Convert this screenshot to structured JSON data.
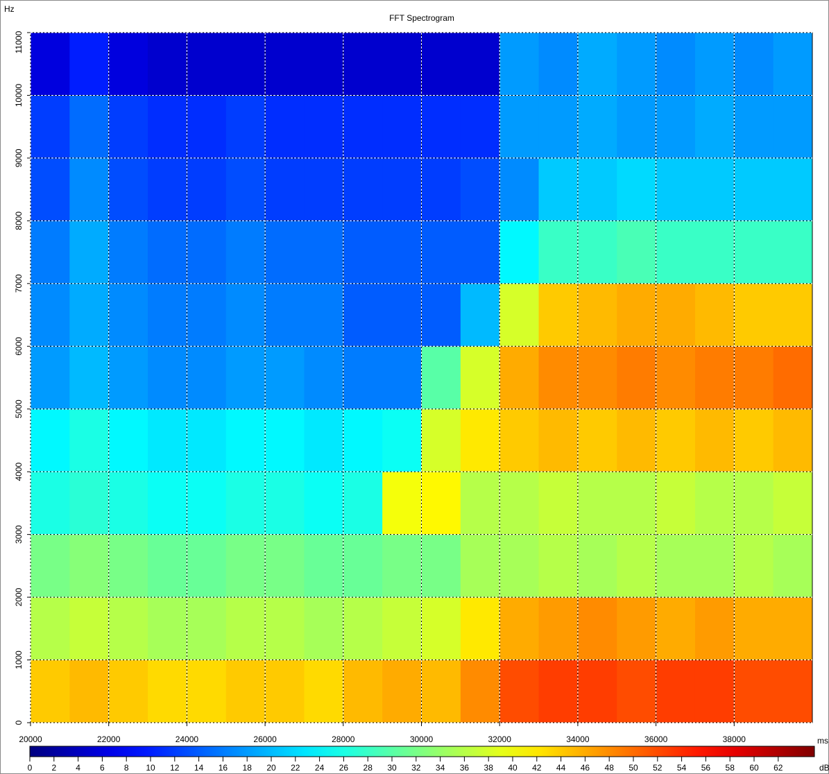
{
  "chart_data": {
    "type": "heatmap",
    "title": "FFT Spectrogram",
    "y_unit": "Hz",
    "x_unit": "ms",
    "color_unit": "dB",
    "colormap": "jet",
    "grid": true,
    "xlim": [
      20000,
      40000
    ],
    "ylim": [
      0,
      11000
    ],
    "clim": [
      0,
      65
    ],
    "xticks": [
      20000,
      22000,
      24000,
      26000,
      28000,
      30000,
      32000,
      34000,
      36000,
      38000
    ],
    "yticks": [
      0,
      1000,
      2000,
      3000,
      4000,
      5000,
      6000,
      7000,
      8000,
      9000,
      10000,
      11000
    ],
    "cticks": [
      0,
      2,
      4,
      6,
      8,
      10,
      12,
      14,
      16,
      18,
      20,
      22,
      24,
      26,
      28,
      30,
      32,
      34,
      36,
      38,
      40,
      42,
      44,
      46,
      48,
      50,
      52,
      54,
      56,
      58,
      60,
      62
    ],
    "xbins": [
      20000,
      21000,
      22000,
      23000,
      24000,
      25000,
      26000,
      27000,
      28000,
      29000,
      30000,
      31000,
      32000,
      33000,
      34000,
      35000,
      36000,
      37000,
      38000,
      39000,
      40000
    ],
    "ybins": [
      0,
      1000,
      2000,
      3000,
      4000,
      5000,
      6000,
      7000,
      8000,
      9000,
      10000,
      11000
    ],
    "z": [
      [
        44,
        45,
        44,
        43,
        43,
        44,
        44,
        43,
        45,
        46,
        45,
        48,
        52,
        53,
        53,
        52,
        53,
        53,
        52,
        52
      ],
      [
        36,
        37,
        36,
        35,
        35,
        36,
        36,
        35,
        36,
        37,
        38,
        42,
        46,
        47,
        48,
        47,
        46,
        47,
        46,
        46
      ],
      [
        32,
        33,
        32,
        31,
        31,
        32,
        32,
        31,
        31,
        32,
        32,
        35,
        35,
        36,
        35,
        36,
        35,
        35,
        36,
        35
      ],
      [
        26,
        27,
        26,
        25,
        25,
        26,
        26,
        25,
        26,
        40,
        41,
        36,
        36,
        37,
        36,
        36,
        37,
        36,
        36,
        37
      ],
      [
        24,
        26,
        24,
        23,
        23,
        24,
        24,
        23,
        24,
        25,
        38,
        42,
        44,
        45,
        44,
        45,
        44,
        45,
        44,
        45
      ],
      [
        18,
        20,
        18,
        17,
        17,
        18,
        18,
        17,
        16,
        16,
        30,
        38,
        46,
        48,
        48,
        49,
        48,
        49,
        49,
        50
      ],
      [
        17,
        19,
        17,
        16,
        16,
        17,
        16,
        16,
        14,
        14,
        14,
        20,
        38,
        44,
        45,
        46,
        46,
        45,
        44,
        44
      ],
      [
        16,
        19,
        16,
        15,
        15,
        16,
        15,
        15,
        14,
        14,
        14,
        14,
        24,
        28,
        28,
        29,
        28,
        28,
        28,
        28
      ],
      [
        13,
        17,
        13,
        12,
        12,
        13,
        12,
        12,
        12,
        12,
        12,
        13,
        17,
        21,
        21,
        22,
        21,
        21,
        21,
        21
      ],
      [
        12,
        15,
        12,
        11,
        11,
        12,
        11,
        11,
        11,
        11,
        11,
        11,
        18,
        18,
        19,
        18,
        18,
        19,
        18,
        18
      ],
      [
        6,
        10,
        6,
        5,
        5,
        5,
        5,
        5,
        5,
        5,
        5,
        5,
        18,
        17,
        19,
        18,
        17,
        18,
        17,
        18
      ]
    ]
  }
}
